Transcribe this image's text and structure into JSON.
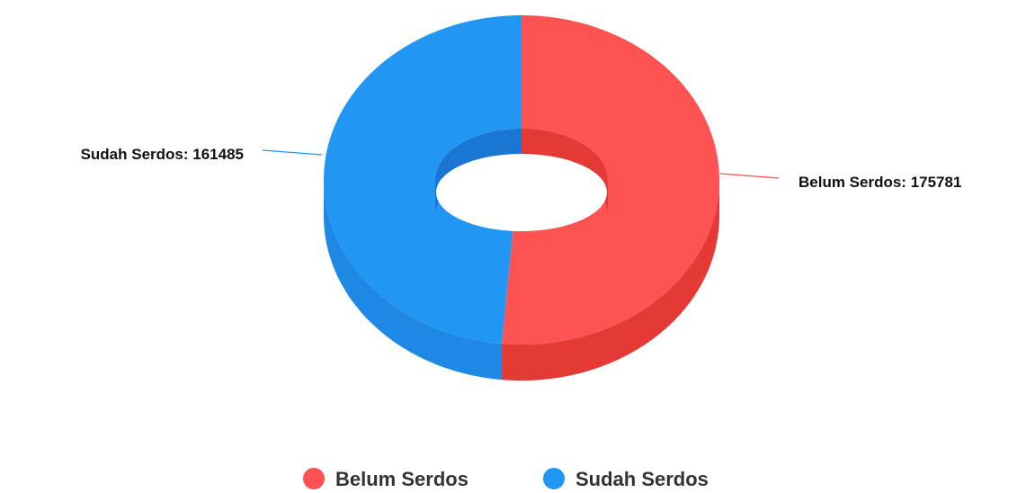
{
  "chart_data": {
    "type": "pie",
    "variant": "3d-donut",
    "title": "",
    "series": [
      {
        "name": "Belum Serdos",
        "value": 175781,
        "label": "Belum Serdos: 175781",
        "color": "#ff5252",
        "side_color": "#e53935",
        "inner_color": "#e53935"
      },
      {
        "name": "Sudah Serdos",
        "value": 161485,
        "label": "Sudah Serdos: 161485",
        "color": "#2196f3",
        "side_color": "#1e88e5",
        "inner_color": "#1976d2"
      }
    ],
    "legend": {
      "position": "bottom-center",
      "items": [
        "Belum Serdos",
        "Sudah Serdos"
      ]
    }
  }
}
